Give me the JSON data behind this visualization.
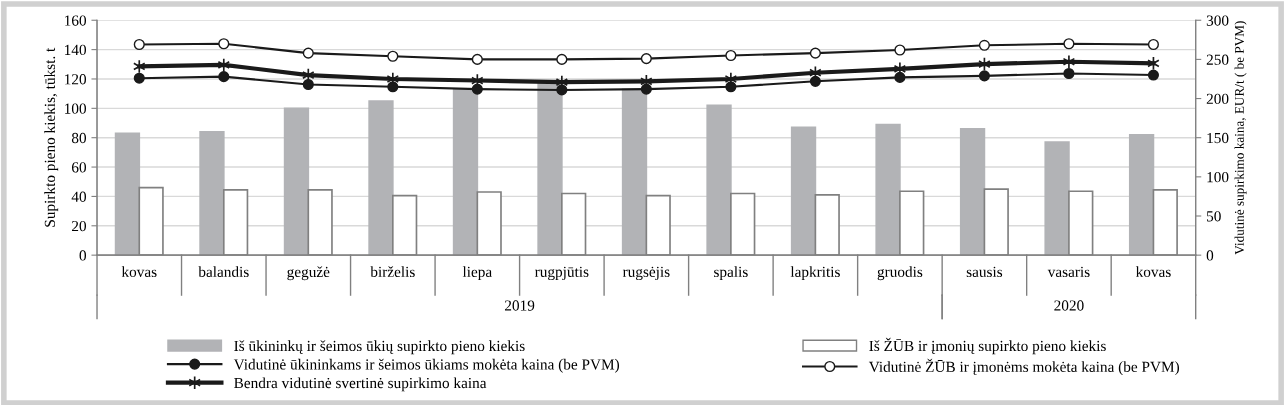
{
  "chart_data": {
    "type": "bar",
    "categories": [
      "kovas",
      "balandis",
      "gegužė",
      "birželis",
      "liepa",
      "rugpjūtis",
      "rugsėjis",
      "spalis",
      "lapkritis",
      "gruodis",
      "sausis",
      "vasaris",
      "kovas"
    ],
    "ylabel": "Supirkto pieno kiekis, tūkst. t",
    "y2label": "Vidutinė supirkimo kaina, EUR/t ( be PVM)",
    "ylim": [
      0,
      160
    ],
    "yticks": [
      0,
      20,
      40,
      60,
      80,
      100,
      120,
      140,
      160
    ],
    "y2lim": [
      0,
      300
    ],
    "y2ticks": [
      0,
      50,
      100,
      150,
      200,
      250,
      300
    ],
    "grid": "y",
    "legend": "bottom",
    "annotations": [
      "2019",
      "2020"
    ],
    "series": [
      {
        "name": "Iš ūkininkų ir šeimos ūkių supirkto pieno kiekis",
        "color": "#b2b3b6",
        "values": [
          83,
          84,
          100,
          105,
          113,
          117,
          113,
          102,
          87,
          89,
          86,
          77,
          82
        ]
      },
      {
        "name": "Iš ŽŪB ir įmonių supirkto pieno kiekis",
        "color": "#ffffff",
        "values": [
          46,
          44.5,
          44.5,
          40.5,
          43,
          42,
          40.5,
          42,
          41,
          43.5,
          45,
          43.5,
          44.5
        ]
      },
      {
        "name": "Vidutinė ūkininkams ir šeimos ūkiams mokėta kaina (be PVM)",
        "type": "line",
        "axis": "y2",
        "color": "#1a1a1a",
        "marker": "circle",
        "values": [
          226,
          228,
          218,
          215,
          212,
          211,
          212,
          215,
          222,
          227,
          229,
          232,
          230
        ]
      },
      {
        "name": "Vidutinė ŽŪB ir įmonėms mokėta kaina (be PVM)",
        "type": "line",
        "axis": "y2",
        "color": "#1a1a1a",
        "marker": "circle",
        "values": [
          269,
          270,
          258,
          254,
          250,
          250,
          251,
          255,
          258,
          262,
          268,
          270,
          269
        ]
      },
      {
        "name": "Bendra vidutinė svertinė supirkimo kaina",
        "type": "line",
        "axis": "y2",
        "color": "#1a1a1a",
        "marker": "cross",
        "values": [
          241,
          243,
          230,
          225,
          223,
          221,
          222,
          225,
          233,
          238,
          244,
          247,
          245
        ]
      }
    ]
  }
}
